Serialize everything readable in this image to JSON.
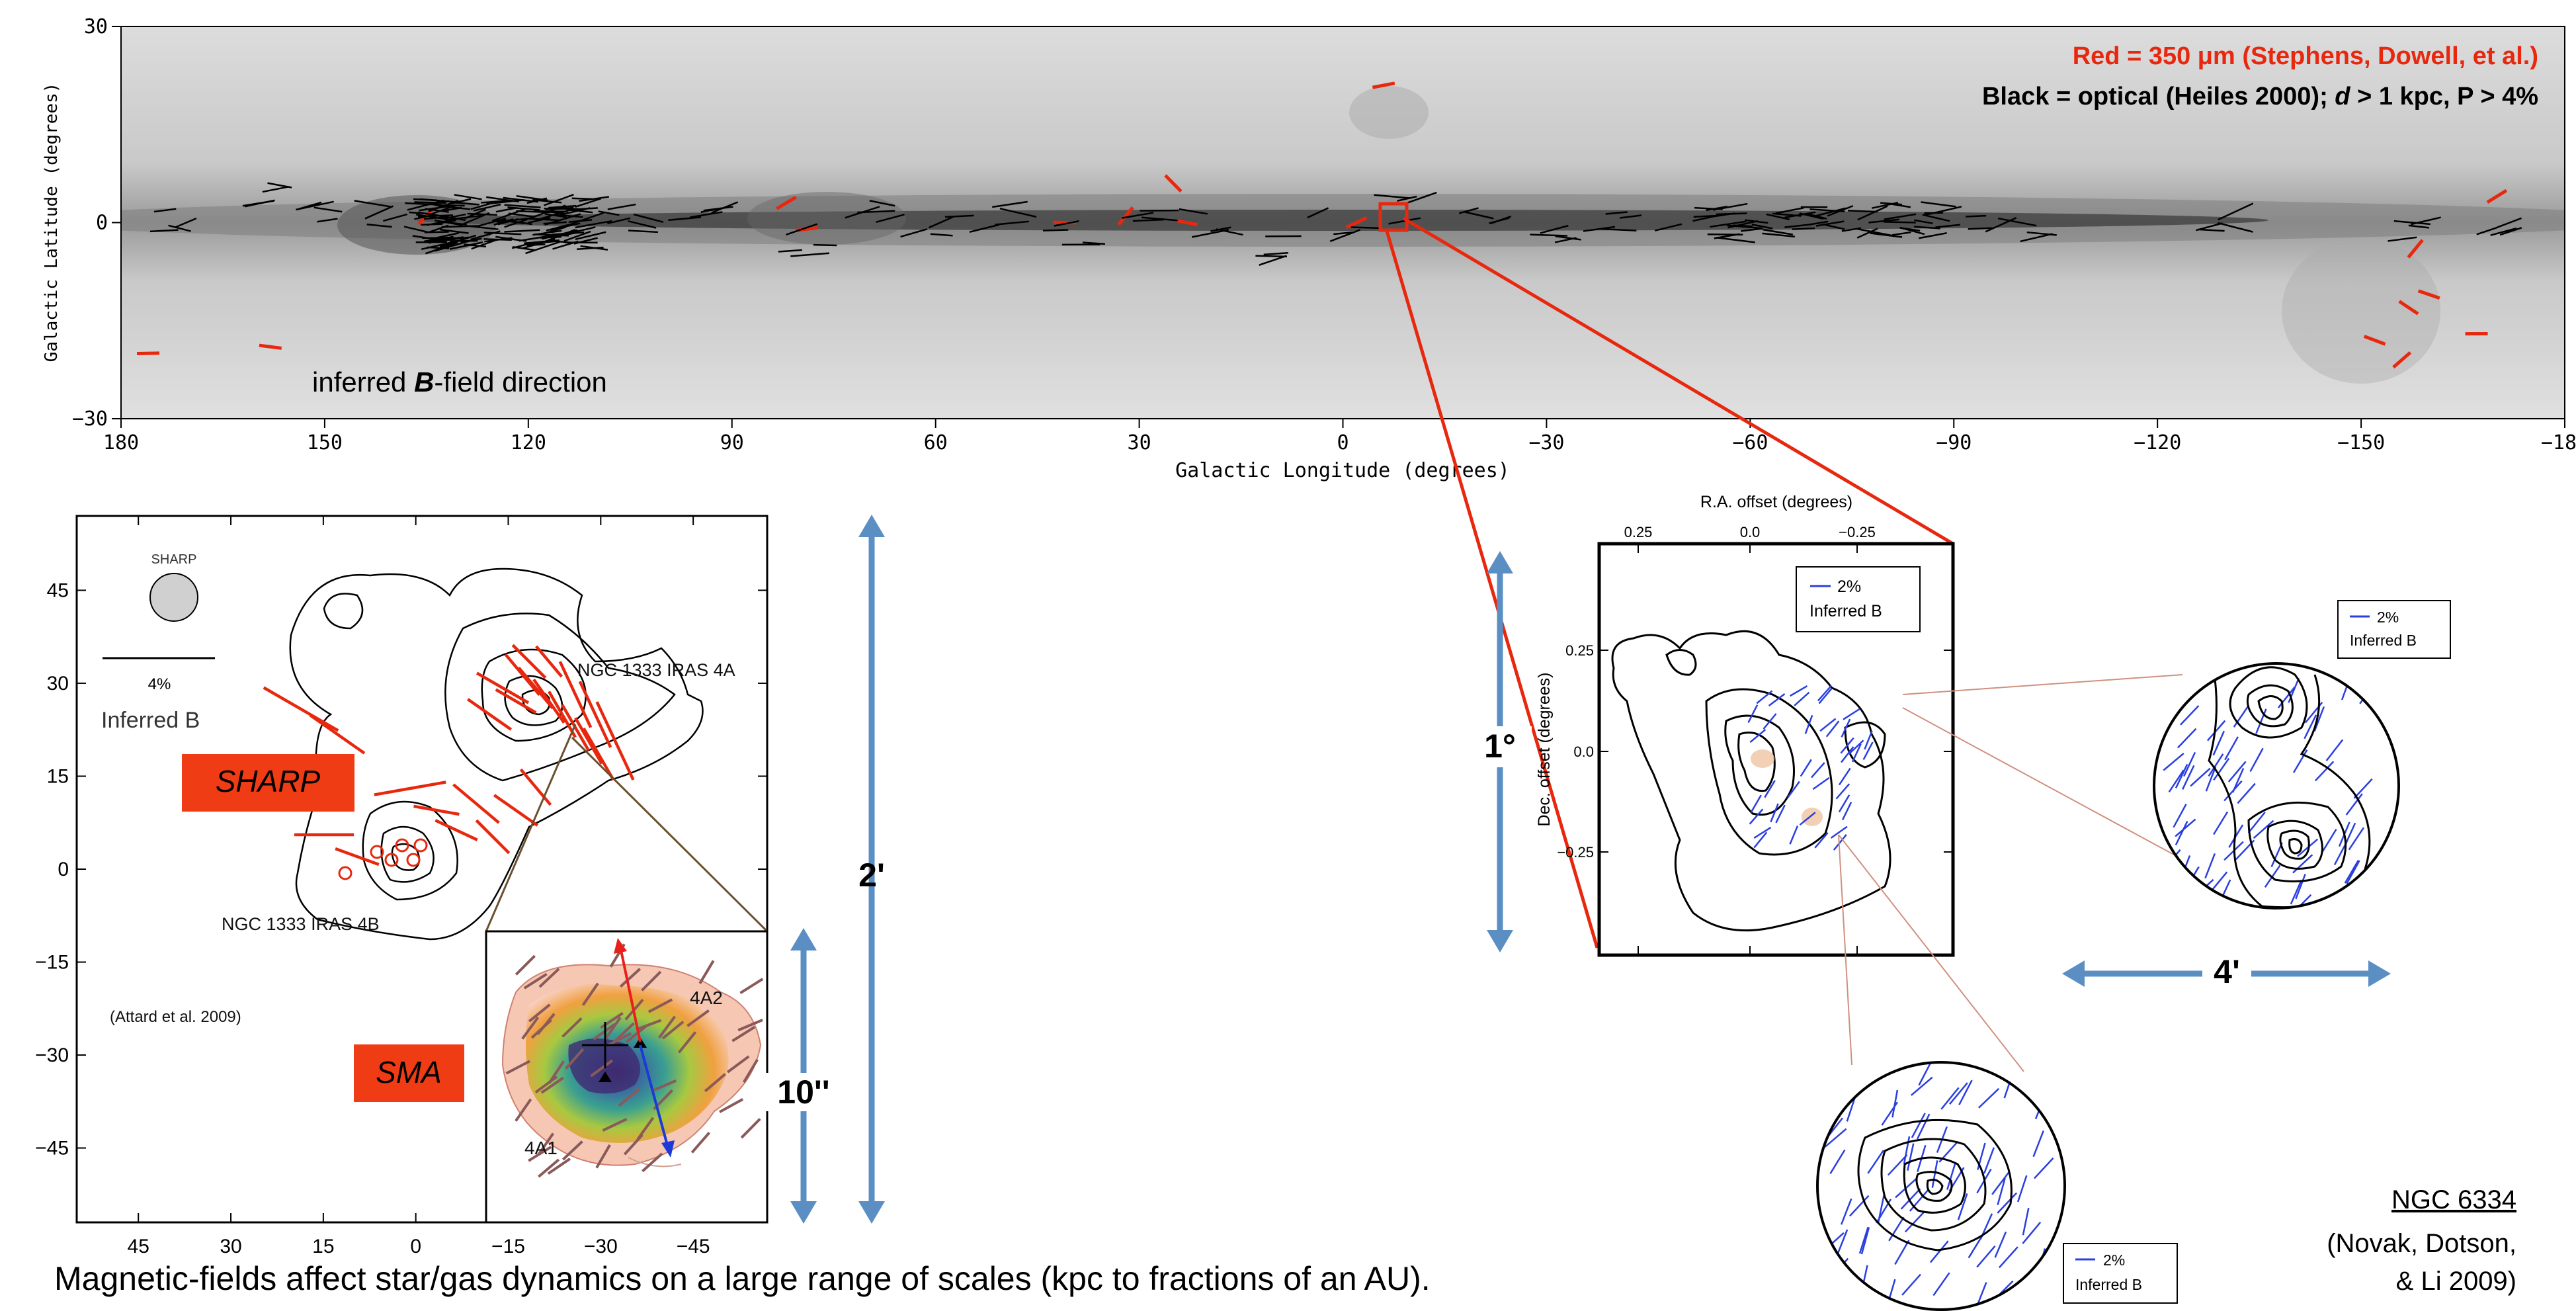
{
  "colors": {
    "red": "#e8280e",
    "blue_arrow": "#5b8fc4",
    "label_box": "#f03c14",
    "sma_arrow_red": "#e8201c",
    "sma_arrow_blue": "#1c3ad8",
    "vector_blue": "#2a3fe0"
  },
  "skymap": {
    "legend_red": "Red = 350 μm (Stephens, Dowell, et al.)",
    "legend_black_pre": "Black = optical (Heiles 2000); ",
    "legend_black_d": "d",
    "legend_black_mid": " > 1 kpc, P > 4%",
    "inferred_pre": "inferred ",
    "inferred_b": "B",
    "inferred_post": "-field direction",
    "xlabel": "Galactic Longitude (degrees)",
    "ylabel": "Galactic Latitude (degrees)"
  },
  "chart_data": [
    {
      "type": "scatter",
      "title": "",
      "xlabel": "Galactic Longitude (degrees)",
      "ylabel": "Galactic Latitude (degrees)",
      "xlim": [
        180,
        -180
      ],
      "ylim": [
        -30,
        30
      ],
      "xticks": [
        "180",
        "150",
        "120",
        "90",
        "60",
        "30",
        "0",
        "−30",
        "−60",
        "−90",
        "−120",
        "−150",
        "−180"
      ],
      "yticks": [
        "30",
        "0",
        "−30"
      ],
      "series": [
        {
          "name": "Red = 350 μm (Stephens, Dowell, et al.)",
          "points": [
            [
              176,
              -20
            ],
            [
              158,
              -19
            ],
            [
              135,
              1
            ],
            [
              82,
              3
            ],
            [
              79,
              -1
            ],
            [
              41,
              0
            ],
            [
              32,
              1
            ],
            [
              25,
              6
            ],
            [
              23,
              0
            ],
            [
              -6,
              21
            ],
            [
              -2,
              0
            ],
            [
              -157,
              -13
            ],
            [
              -160,
              -11
            ],
            [
              -158,
              -4
            ],
            [
              -167,
              -17
            ],
            [
              -170,
              4
            ],
            [
              -152,
              -18
            ],
            [
              -156,
              -21
            ]
          ]
        },
        {
          "name": "Black = optical (Heiles 2000); d > 1 kpc, P > 4%",
          "points": [
            [
              170,
              0
            ],
            [
              160,
              4
            ],
            [
              150,
              2
            ],
            [
              140,
              1
            ],
            [
              135,
              -2
            ],
            [
              130,
              0
            ],
            [
              125,
              2
            ],
            [
              118,
              0
            ],
            [
              110,
              2
            ],
            [
              100,
              -1
            ],
            [
              90,
              1
            ],
            [
              80,
              -3
            ],
            [
              70,
              2
            ],
            [
              60,
              0
            ],
            [
              50,
              1
            ],
            [
              40,
              -2
            ],
            [
              30,
              1
            ],
            [
              20,
              0
            ],
            [
              10,
              -4
            ],
            [
              0,
              0
            ],
            [
              -10,
              2
            ],
            [
              -20,
              1
            ],
            [
              -30,
              -2
            ],
            [
              -40,
              0
            ],
            [
              -50,
              1
            ],
            [
              -60,
              -1
            ],
            [
              -70,
              2
            ],
            [
              -80,
              0
            ],
            [
              -90,
              1
            ],
            [
              -100,
              -1
            ],
            [
              -130,
              0
            ],
            [
              -160,
              -1
            ],
            [
              -170,
              0
            ]
          ]
        }
      ]
    },
    {
      "type": "scatter",
      "xlabel": "",
      "ylabel": "",
      "xlim": [
        55,
        -57
      ],
      "ylim": [
        -57,
        57
      ],
      "xticks": [
        "45",
        "30",
        "15",
        "0",
        "−15",
        "−30",
        "−45"
      ],
      "yticks": [
        "45",
        "30",
        "15",
        "0",
        "−15",
        "−30",
        "−45"
      ]
    },
    {
      "type": "scatter",
      "xlabel": "R.A. offset (degrees)",
      "ylabel": "Dec. offset (degrees)",
      "xticks": [
        "0.25",
        "0.0",
        "−0.25"
      ],
      "yticks": [
        "0.25",
        "0.0",
        "−0.25"
      ]
    }
  ],
  "ngc1333": {
    "sharp_small": "SHARP",
    "percent": "4%",
    "inferred": "Inferred B",
    "iras4a": "NGC 1333 IRAS 4A",
    "iras4b": "NGC 1333 IRAS 4B",
    "citation": "(Attard et al. 2009)",
    "sharp_label": "SHARP",
    "sma_label": "SMA",
    "label_4a2": "4A2",
    "label_4a1": "4A1"
  },
  "scales": {
    "two_arcmin": "2'",
    "ten_arcsec": "10''",
    "one_degree": "1°",
    "four_arcmin": "4'"
  },
  "ngc6334": {
    "legend_pct": "2%",
    "legend_inf": "Inferred B",
    "name": "NGC 6334",
    "ref1": "(Novak, Dotson,",
    "ref2": "& Li 2009)"
  },
  "caption": "Magnetic-fields affect star/gas dynamics on a large range of scales (kpc to fractions of an AU)."
}
